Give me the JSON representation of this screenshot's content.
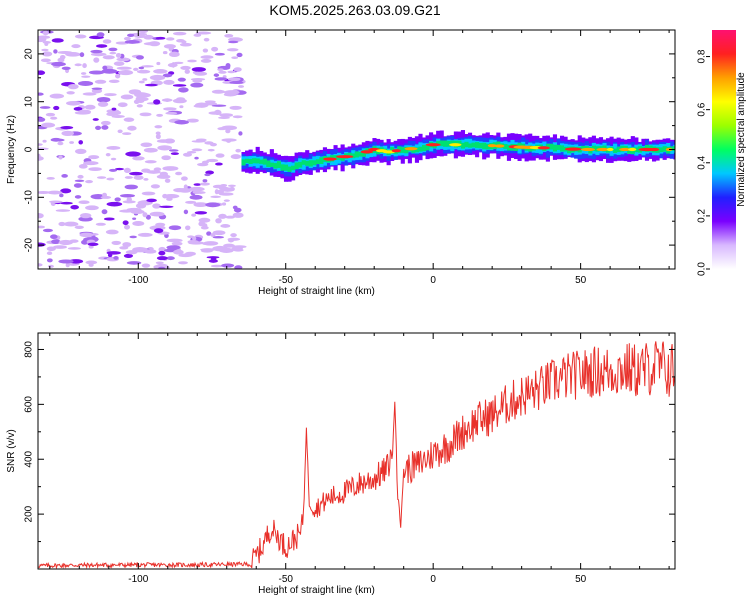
{
  "title": "KOM5.2025.263.03.09.G21",
  "chart_data": [
    {
      "type": "heatmap",
      "name": "spectrogram",
      "xlabel": "Height of straight line (km)",
      "ylabel": "Frequency (Hz)",
      "xlim": [
        -134,
        82
      ],
      "ylim": [
        -25,
        25
      ],
      "xticks": [
        -100,
        -50,
        0,
        50
      ],
      "yticks": [
        -20,
        -10,
        0,
        10,
        20
      ],
      "colorbar": {
        "label": "Normalized spectral amplitude",
        "range": [
          0,
          0.9
        ],
        "ticks": [
          0.0,
          0.2,
          0.4,
          0.6,
          0.8
        ],
        "colors": [
          "#ffffff",
          "#d8b8ff",
          "#7a00ff",
          "#2020ff",
          "#00c8ff",
          "#00ff60",
          "#9cff00",
          "#ffff00",
          "#ffa000",
          "#ff2020",
          "#ff1070"
        ]
      },
      "signal_onset_km": -65,
      "ridge": {
        "x": [
          -65,
          -60,
          -55,
          -50,
          -45,
          -40,
          -35,
          -30,
          -25,
          -20,
          -15,
          -10,
          -5,
          0,
          10,
          20,
          30,
          40,
          50,
          60,
          70,
          80
        ],
        "freq": [
          -2.5,
          -2.5,
          -3.0,
          -4.0,
          -3.0,
          -2.5,
          -2.0,
          -1.5,
          -1.0,
          0.0,
          -0.5,
          0.0,
          0.3,
          1.0,
          1.0,
          0.8,
          0.5,
          0.3,
          0.0,
          0.0,
          0.0,
          0.0
        ]
      }
    },
    {
      "type": "line",
      "name": "snr",
      "xlabel": "Height of straight line (km)",
      "ylabel": "SNR (v/v)",
      "xlim": [
        -134,
        82
      ],
      "ylim": [
        0,
        860
      ],
      "xticks": [
        -100,
        -50,
        0,
        50
      ],
      "yticks": [
        200,
        400,
        600,
        800
      ],
      "series": [
        {
          "name": "SNR",
          "color": "#e8302a",
          "x": [
            -134,
            -120,
            -100,
            -80,
            -62,
            -58,
            -55,
            -52,
            -50,
            -47,
            -45,
            -44,
            -43,
            -42,
            -40,
            -35,
            -30,
            -25,
            -20,
            -16,
            -14,
            -13,
            -12,
            -11,
            -10,
            -5,
            0,
            5,
            10,
            15,
            20,
            25,
            30,
            35,
            40,
            45,
            50,
            55,
            60,
            65,
            70,
            75,
            82
          ],
          "y": [
            12,
            14,
            15,
            15,
            18,
            80,
            150,
            110,
            80,
            110,
            130,
            200,
            510,
            250,
            220,
            260,
            280,
            310,
            330,
            360,
            410,
            600,
            300,
            150,
            360,
            380,
            420,
            450,
            500,
            540,
            560,
            600,
            630,
            650,
            680,
            700,
            710,
            720,
            720,
            730,
            720,
            740,
            720
          ]
        }
      ]
    }
  ]
}
